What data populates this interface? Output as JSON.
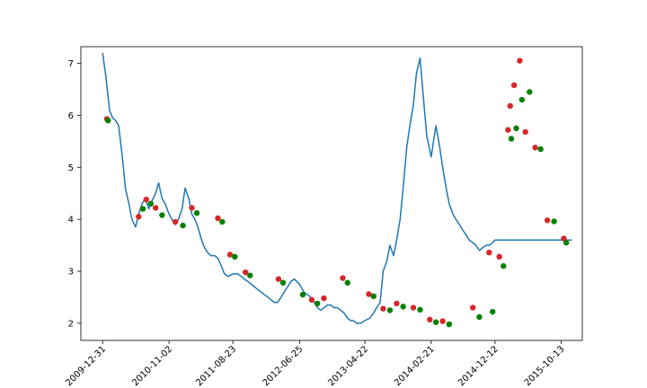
{
  "chart_data": {
    "type": "line",
    "title": "",
    "xlabel": "",
    "ylabel": "",
    "x_range": [
      "2009-09-22",
      "2016-01-18"
    ],
    "ylim": [
      1.67,
      7.32
    ],
    "grid": false,
    "line_color": "#1f77b4",
    "buy_color": "#008000",
    "sell_color": "#d62728",
    "x_tick_labels": [
      "2009-12-31",
      "2010-11-02",
      "2011-08-23",
      "2012-06-25",
      "2013-04-22",
      "2014-02-21",
      "2014-12-12",
      "2015-10-13"
    ],
    "y_tick_labels": [
      "2",
      "3",
      "4",
      "5",
      "6",
      "7"
    ],
    "y_ticks": [
      2,
      3,
      4,
      5,
      6,
      7
    ],
    "series": [
      {
        "kind": "line",
        "x": [
          "2009-12-31",
          "2010-01-15",
          "2010-02-01",
          "2010-02-15",
          "2010-03-01",
          "2010-03-15",
          "2010-04-01",
          "2010-04-15",
          "2010-05-01",
          "2010-05-15",
          "2010-06-01",
          "2010-06-15",
          "2010-07-01",
          "2010-07-15",
          "2010-08-01",
          "2010-08-15",
          "2010-09-01",
          "2010-09-15",
          "2010-10-01",
          "2010-10-15",
          "2010-11-02",
          "2010-11-15",
          "2010-12-01",
          "2010-12-15",
          "2011-01-01",
          "2011-01-15",
          "2011-02-01",
          "2011-02-15",
          "2011-03-01",
          "2011-03-15",
          "2011-04-01",
          "2011-04-15",
          "2011-05-01",
          "2011-05-15",
          "2011-06-01",
          "2011-06-15",
          "2011-07-01",
          "2011-07-15",
          "2011-08-01",
          "2011-08-23",
          "2011-09-15",
          "2011-10-01",
          "2011-10-15",
          "2011-11-01",
          "2011-11-15",
          "2011-12-01",
          "2011-12-15",
          "2012-01-01",
          "2012-01-15",
          "2012-02-01",
          "2012-02-15",
          "2012-03-01",
          "2012-03-15",
          "2012-04-01",
          "2012-04-15",
          "2012-05-01",
          "2012-05-15",
          "2012-06-01",
          "2012-06-25",
          "2012-07-15",
          "2012-08-01",
          "2012-08-15",
          "2012-09-01",
          "2012-09-15",
          "2012-10-01",
          "2012-10-15",
          "2012-11-01",
          "2012-11-15",
          "2012-12-01",
          "2012-12-15",
          "2013-01-01",
          "2013-01-15",
          "2013-02-01",
          "2013-02-15",
          "2013-03-01",
          "2013-03-15",
          "2013-04-01",
          "2013-04-22",
          "2013-05-15",
          "2013-06-01",
          "2013-06-15",
          "2013-07-01",
          "2013-07-15",
          "2013-08-01",
          "2013-08-15",
          "2013-09-01",
          "2013-09-15",
          "2013-10-01",
          "2013-10-15",
          "2013-11-01",
          "2013-11-15",
          "2013-12-01",
          "2013-12-15",
          "2014-01-01",
          "2014-01-15",
          "2014-02-01",
          "2014-02-21",
          "2014-03-15",
          "2014-04-01",
          "2014-04-15",
          "2014-05-01",
          "2014-05-15",
          "2014-06-01",
          "2014-06-15",
          "2014-07-01",
          "2014-07-15",
          "2014-08-01",
          "2014-08-15",
          "2014-09-01",
          "2014-09-15",
          "2014-10-01",
          "2014-10-15",
          "2014-11-01",
          "2014-11-15",
          "2014-12-01",
          "2014-12-12",
          "2015-01-01",
          "2015-01-15",
          "2015-02-01",
          "2015-02-15",
          "2015-03-01",
          "2015-03-15",
          "2015-04-01",
          "2015-04-15",
          "2015-05-01",
          "2015-05-15",
          "2015-06-01",
          "2015-06-15",
          "2015-07-01",
          "2015-07-15",
          "2015-08-01",
          "2015-08-15",
          "2015-09-01",
          "2015-09-15",
          "2015-10-01",
          "2015-10-13",
          "2015-11-01",
          "2015-11-15",
          "2015-12-01"
        ],
        "y": [
          7.2,
          6.75,
          6.1,
          5.95,
          5.9,
          5.8,
          5.2,
          4.6,
          4.3,
          4.0,
          3.85,
          4.1,
          4.3,
          4.4,
          4.2,
          4.35,
          4.5,
          4.7,
          4.4,
          4.3,
          4.1,
          4.0,
          3.9,
          4.0,
          4.2,
          4.6,
          4.4,
          4.1,
          4.0,
          3.85,
          3.6,
          3.45,
          3.35,
          3.3,
          3.3,
          3.25,
          3.1,
          2.95,
          2.9,
          2.95,
          2.95,
          2.9,
          2.85,
          2.8,
          2.75,
          2.7,
          2.65,
          2.6,
          2.55,
          2.5,
          2.45,
          2.4,
          2.4,
          2.5,
          2.6,
          2.7,
          2.8,
          2.85,
          2.75,
          2.6,
          2.55,
          2.5,
          2.4,
          2.3,
          2.25,
          2.3,
          2.35,
          2.35,
          2.3,
          2.3,
          2.25,
          2.2,
          2.1,
          2.05,
          2.05,
          2.0,
          2.0,
          2.05,
          2.1,
          2.2,
          2.3,
          2.4,
          3.0,
          3.2,
          3.5,
          3.3,
          3.6,
          4.0,
          4.6,
          5.4,
          5.8,
          6.2,
          6.8,
          7.1,
          6.4,
          5.6,
          5.2,
          5.8,
          5.4,
          5.0,
          4.6,
          4.3,
          4.1,
          4.0,
          3.9,
          3.8,
          3.7,
          3.6,
          3.55,
          3.5,
          3.4,
          3.45,
          3.5,
          3.5,
          3.55,
          3.6,
          3.6,
          3.6,
          3.6,
          3.6,
          3.6,
          3.6,
          3.6,
          3.6,
          3.6,
          3.6,
          3.6,
          3.6,
          3.6,
          3.6,
          3.6,
          3.6,
          3.6,
          3.6,
          3.6,
          3.6,
          3.6,
          3.6,
          3.6
        ]
      },
      {
        "kind": "scatter",
        "name": "",
        "role": "sell",
        "x": [
          "2010-01-20",
          "2010-06-15",
          "2010-07-20",
          "2010-09-01",
          "2010-12-01",
          "2011-02-15",
          "2011-06-15",
          "2011-08-10",
          "2011-10-20",
          "2012-03-20",
          "2012-08-20",
          "2012-10-15",
          "2013-01-10",
          "2013-05-10",
          "2013-07-15",
          "2013-09-15",
          "2013-12-01",
          "2014-02-15",
          "2014-04-15",
          "2014-09-01",
          "2014-11-15",
          "2015-01-01",
          "2015-02-10",
          "2015-02-20",
          "2015-03-10",
          "2015-04-05",
          "2015-05-01",
          "2015-06-15",
          "2015-08-10",
          "2015-10-25"
        ],
        "y": [
          5.93,
          4.05,
          4.38,
          4.22,
          3.95,
          4.22,
          4.02,
          3.32,
          2.98,
          2.85,
          2.45,
          2.48,
          2.87,
          2.56,
          2.28,
          2.38,
          2.3,
          2.07,
          2.04,
          2.3,
          3.36,
          3.28,
          5.72,
          6.18,
          6.58,
          7.05,
          5.68,
          5.38,
          3.98,
          3.63
        ]
      },
      {
        "kind": "scatter",
        "name": "",
        "role": "buy",
        "x": [
          "2010-01-25",
          "2010-07-05",
          "2010-08-10",
          "2010-10-01",
          "2011-01-05",
          "2011-03-10",
          "2011-07-05",
          "2011-09-01",
          "2011-11-10",
          "2012-04-10",
          "2012-07-10",
          "2012-09-15",
          "2013-02-01",
          "2013-06-01",
          "2013-08-15",
          "2013-10-15",
          "2014-01-01",
          "2014-03-15",
          "2014-05-15",
          "2014-10-01",
          "2014-12-01",
          "2015-01-20",
          "2015-02-25",
          "2015-03-20",
          "2015-04-15",
          "2015-05-20",
          "2015-07-10",
          "2015-09-10",
          "2015-11-05"
        ],
        "y": [
          5.9,
          4.2,
          4.3,
          4.08,
          3.88,
          4.12,
          3.95,
          3.28,
          2.92,
          2.78,
          2.55,
          2.38,
          2.78,
          2.52,
          2.25,
          2.32,
          2.26,
          2.02,
          1.98,
          2.12,
          2.22,
          3.1,
          5.55,
          5.75,
          6.3,
          6.45,
          5.35,
          3.96,
          3.55
        ]
      }
    ]
  }
}
